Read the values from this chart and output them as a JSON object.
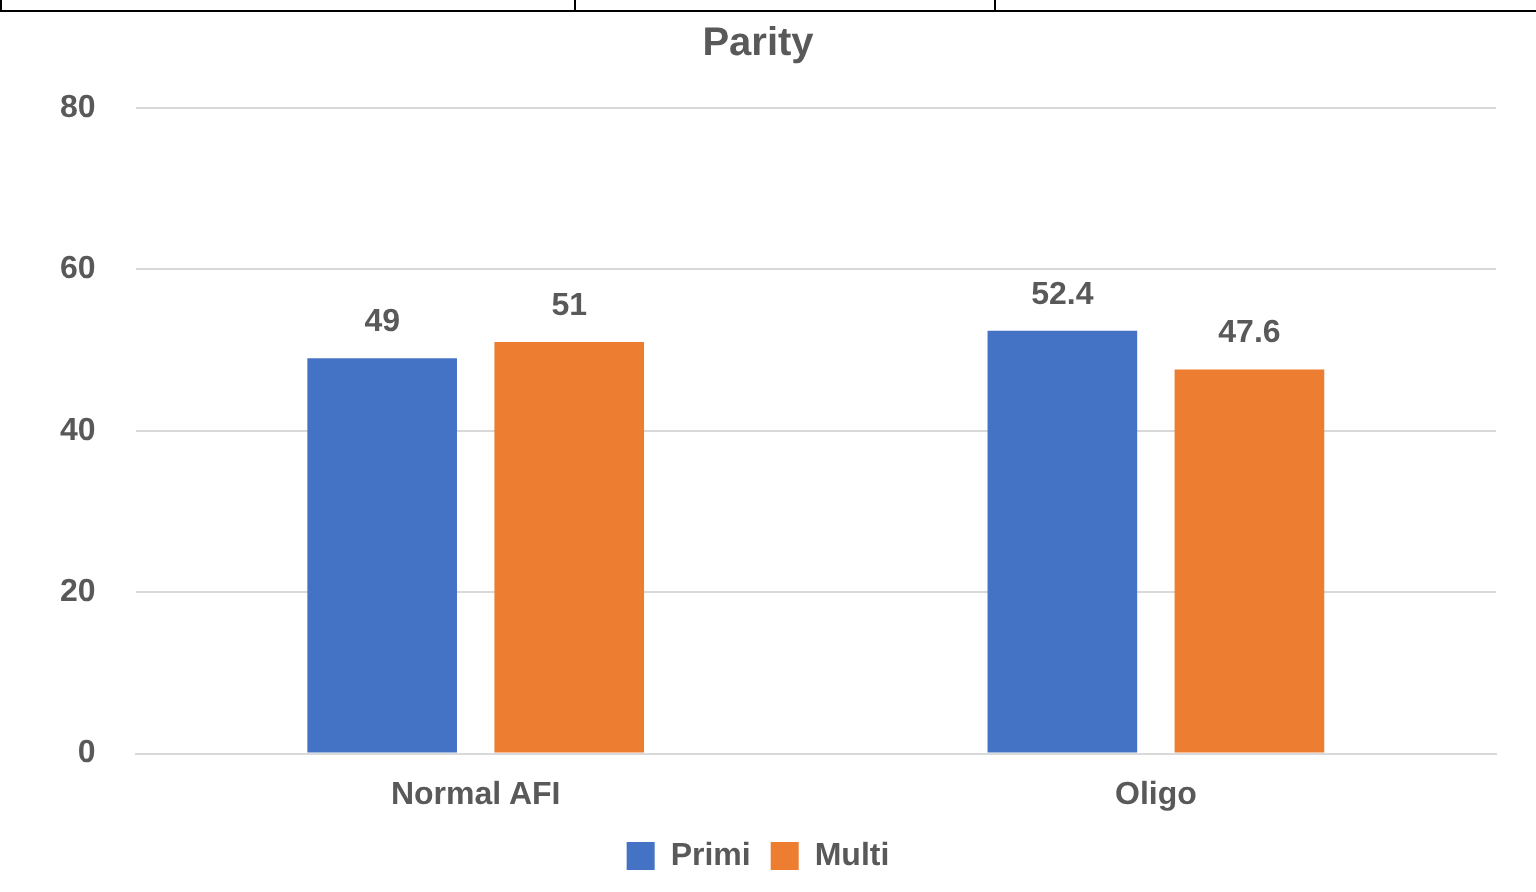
{
  "chart_data": {
    "type": "bar",
    "title": "Parity",
    "categories": [
      "Normal AFI",
      "Oligo"
    ],
    "series": [
      {
        "name": "Primi",
        "color": "#4472c4",
        "values": [
          49,
          52.4
        ]
      },
      {
        "name": "Multi",
        "color": "#ed7d31",
        "values": [
          51,
          47.6
        ]
      }
    ],
    "ylim": [
      0,
      80
    ],
    "yticks": [
      0,
      20,
      40,
      60,
      80
    ],
    "grid": "y",
    "legend": "bottom",
    "data_labels": true
  }
}
